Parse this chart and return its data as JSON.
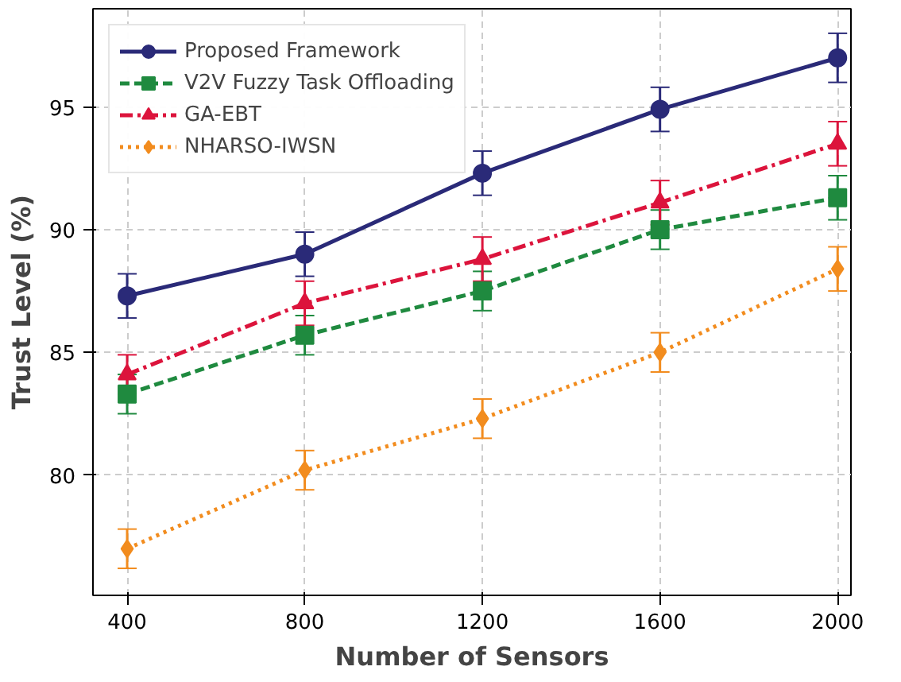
{
  "chart_data": {
    "type": "line",
    "xlabel": "Number of Sensors",
    "ylabel": "Trust Level (%)",
    "x": [
      400,
      800,
      1200,
      1600,
      2000
    ],
    "xlim": [
      323,
      2030
    ],
    "xticks": [
      400,
      800,
      1200,
      1600,
      2000
    ],
    "ylim": [
      75.1,
      99.0
    ],
    "yticks": [
      80,
      85,
      90,
      95
    ],
    "grid": true,
    "legend": "top left",
    "series": [
      {
        "name": "Proposed Framework",
        "color": "#2a2a78",
        "marker": "circle",
        "line_style": "solid",
        "values": [
          87.3,
          89.0,
          92.3,
          94.9,
          97.0
        ],
        "errors": [
          0.9,
          0.9,
          0.9,
          0.9,
          1.0
        ]
      },
      {
        "name": "V2V Fuzzy Task Offloading",
        "color": "#1f8a3f",
        "marker": "square",
        "line_style": "dashed",
        "values": [
          83.3,
          85.7,
          87.5,
          90.0,
          91.3
        ],
        "errors": [
          0.8,
          0.8,
          0.8,
          0.8,
          0.9
        ]
      },
      {
        "name": "GA-EBT",
        "color": "#dc143c",
        "marker": "triangle",
        "line_style": "dashdot",
        "values": [
          84.1,
          87.0,
          88.8,
          91.1,
          93.5
        ],
        "errors": [
          0.8,
          0.9,
          0.9,
          0.9,
          0.9
        ]
      },
      {
        "name": "NHARSO-IWSN",
        "color": "#f28c1e",
        "marker": "diamond",
        "line_style": "dotted",
        "values": [
          77.0,
          80.2,
          82.3,
          85.0,
          88.4
        ],
        "errors": [
          0.8,
          0.8,
          0.8,
          0.8,
          0.9
        ]
      }
    ]
  }
}
